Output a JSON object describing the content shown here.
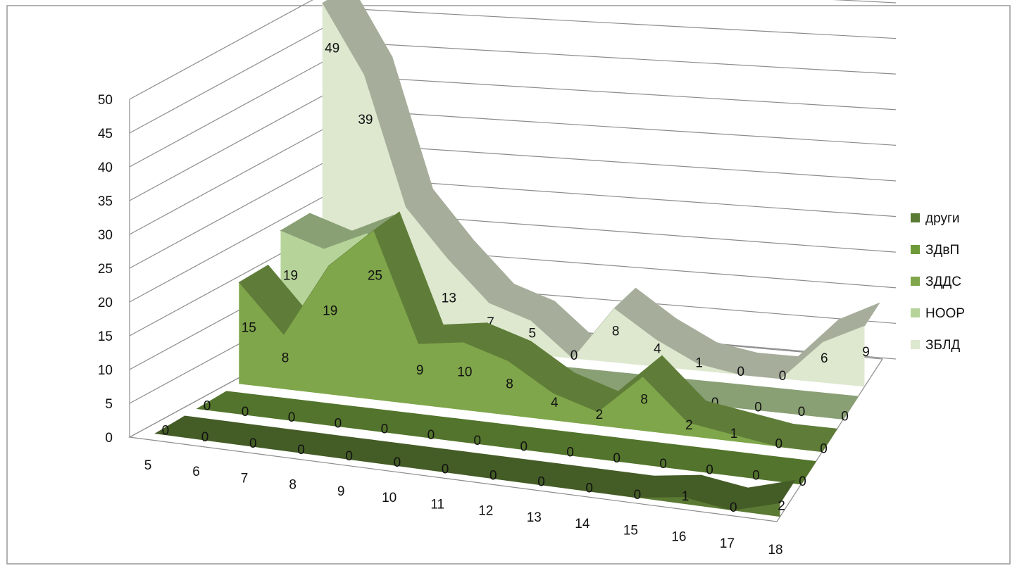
{
  "chart_data": {
    "type": "area",
    "title": "",
    "xlabel": "",
    "ylabel": "",
    "ylim": [
      0,
      50
    ],
    "y_ticks": [
      "0",
      "5",
      "10",
      "15",
      "20",
      "25",
      "30",
      "35",
      "40",
      "45",
      "50"
    ],
    "categories": [
      "5",
      "6",
      "7",
      "8",
      "9",
      "10",
      "11",
      "12",
      "13",
      "14",
      "15",
      "16",
      "17",
      "18"
    ],
    "grid": true,
    "legend_position": "right",
    "series": [
      {
        "name": "други",
        "color": "#5b7a33",
        "values": [
          0,
          0,
          0,
          0,
          0,
          0,
          0,
          0,
          0,
          0,
          0,
          1,
          0,
          2
        ]
      },
      {
        "name": "ЗДвП",
        "color": "#6e9a3a",
        "values": [
          0,
          0,
          0,
          0,
          0,
          0,
          0,
          0,
          0,
          0,
          0,
          0,
          0,
          0
        ]
      },
      {
        "name": "ЗДДС",
        "color": "#7fa64a",
        "values": [
          15,
          8,
          19,
          25,
          9,
          10,
          8,
          4,
          2,
          8,
          2,
          1,
          0,
          0
        ]
      },
      {
        "name": "НООР",
        "color": "#b6d49a",
        "values": [
          19,
          17,
          20,
          2,
          0,
          2,
          0,
          0,
          0,
          0,
          0,
          0,
          0,
          0
        ]
      },
      {
        "name": "ЗБЛД",
        "color": "#dde8cf",
        "values": [
          49,
          39,
          20,
          13,
          7,
          5,
          0,
          8,
          4,
          1,
          0,
          0,
          6,
          9
        ]
      }
    ]
  }
}
